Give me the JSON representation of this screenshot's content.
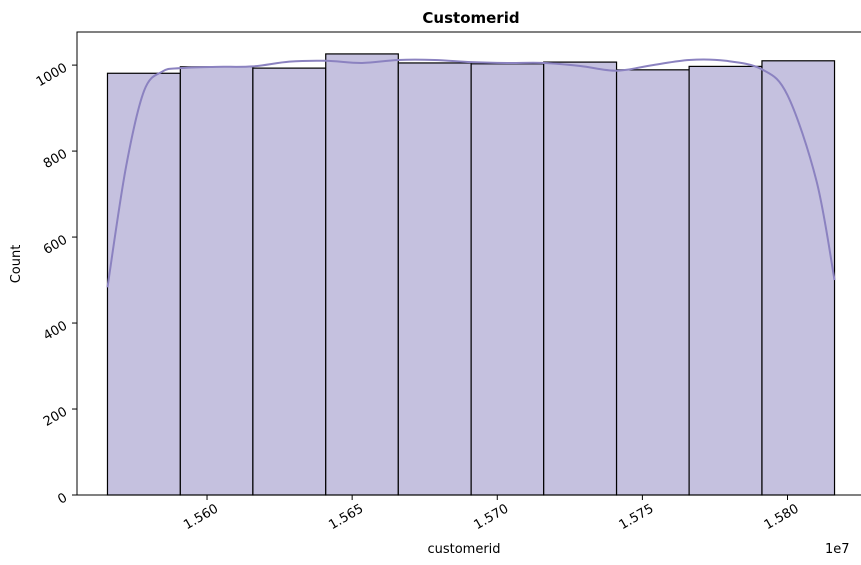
{
  "chart_data": {
    "type": "bar",
    "title": "Customerid",
    "xlabel": "customerid",
    "ylabel": "Count",
    "x_offset_label": "1e7",
    "bin_edges": [
      1.55657,
      1.55908,
      1.56158,
      1.56409,
      1.56659,
      1.5691,
      1.5716,
      1.57411,
      1.57661,
      1.57912,
      1.58162
    ],
    "values": [
      981,
      996,
      993,
      1026,
      1005,
      1003,
      1007,
      989,
      997,
      1010
    ],
    "kde": {
      "x": [
        1.55657,
        1.5572,
        1.55783,
        1.55846,
        1.55908,
        1.56033,
        1.56158,
        1.56284,
        1.56409,
        1.56534,
        1.56659,
        1.56785,
        1.5691,
        1.57035,
        1.5716,
        1.57286,
        1.57411,
        1.57536,
        1.57661,
        1.57787,
        1.57912,
        1.58,
        1.581,
        1.58162
      ],
      "y": [
        483,
        760,
        940,
        985,
        993,
        996,
        997,
        1008,
        1010,
        1005,
        1012,
        1012,
        1007,
        1005,
        1005,
        998,
        987,
        1000,
        1012,
        1010,
        990,
        930,
        730,
        500
      ]
    },
    "x_ticks": [
      1.56,
      1.565,
      1.57,
      1.575,
      1.58
    ],
    "x_tick_labels": [
      "1.560",
      "1.565",
      "1.570",
      "1.575",
      "1.580"
    ],
    "y_ticks": [
      0,
      200,
      400,
      600,
      800,
      1000
    ],
    "y_tick_labels": [
      "0",
      "200",
      "400",
      "600",
      "800",
      "1000"
    ],
    "xlim": [
      1.55552,
      1.58267
    ],
    "ylim": [
      0,
      1077
    ],
    "grid": false,
    "bar_color": "#c5c1df",
    "edge_color": "#000000",
    "kde_color": "#8b82c0",
    "tick_label_rotation_deg": 30
  }
}
